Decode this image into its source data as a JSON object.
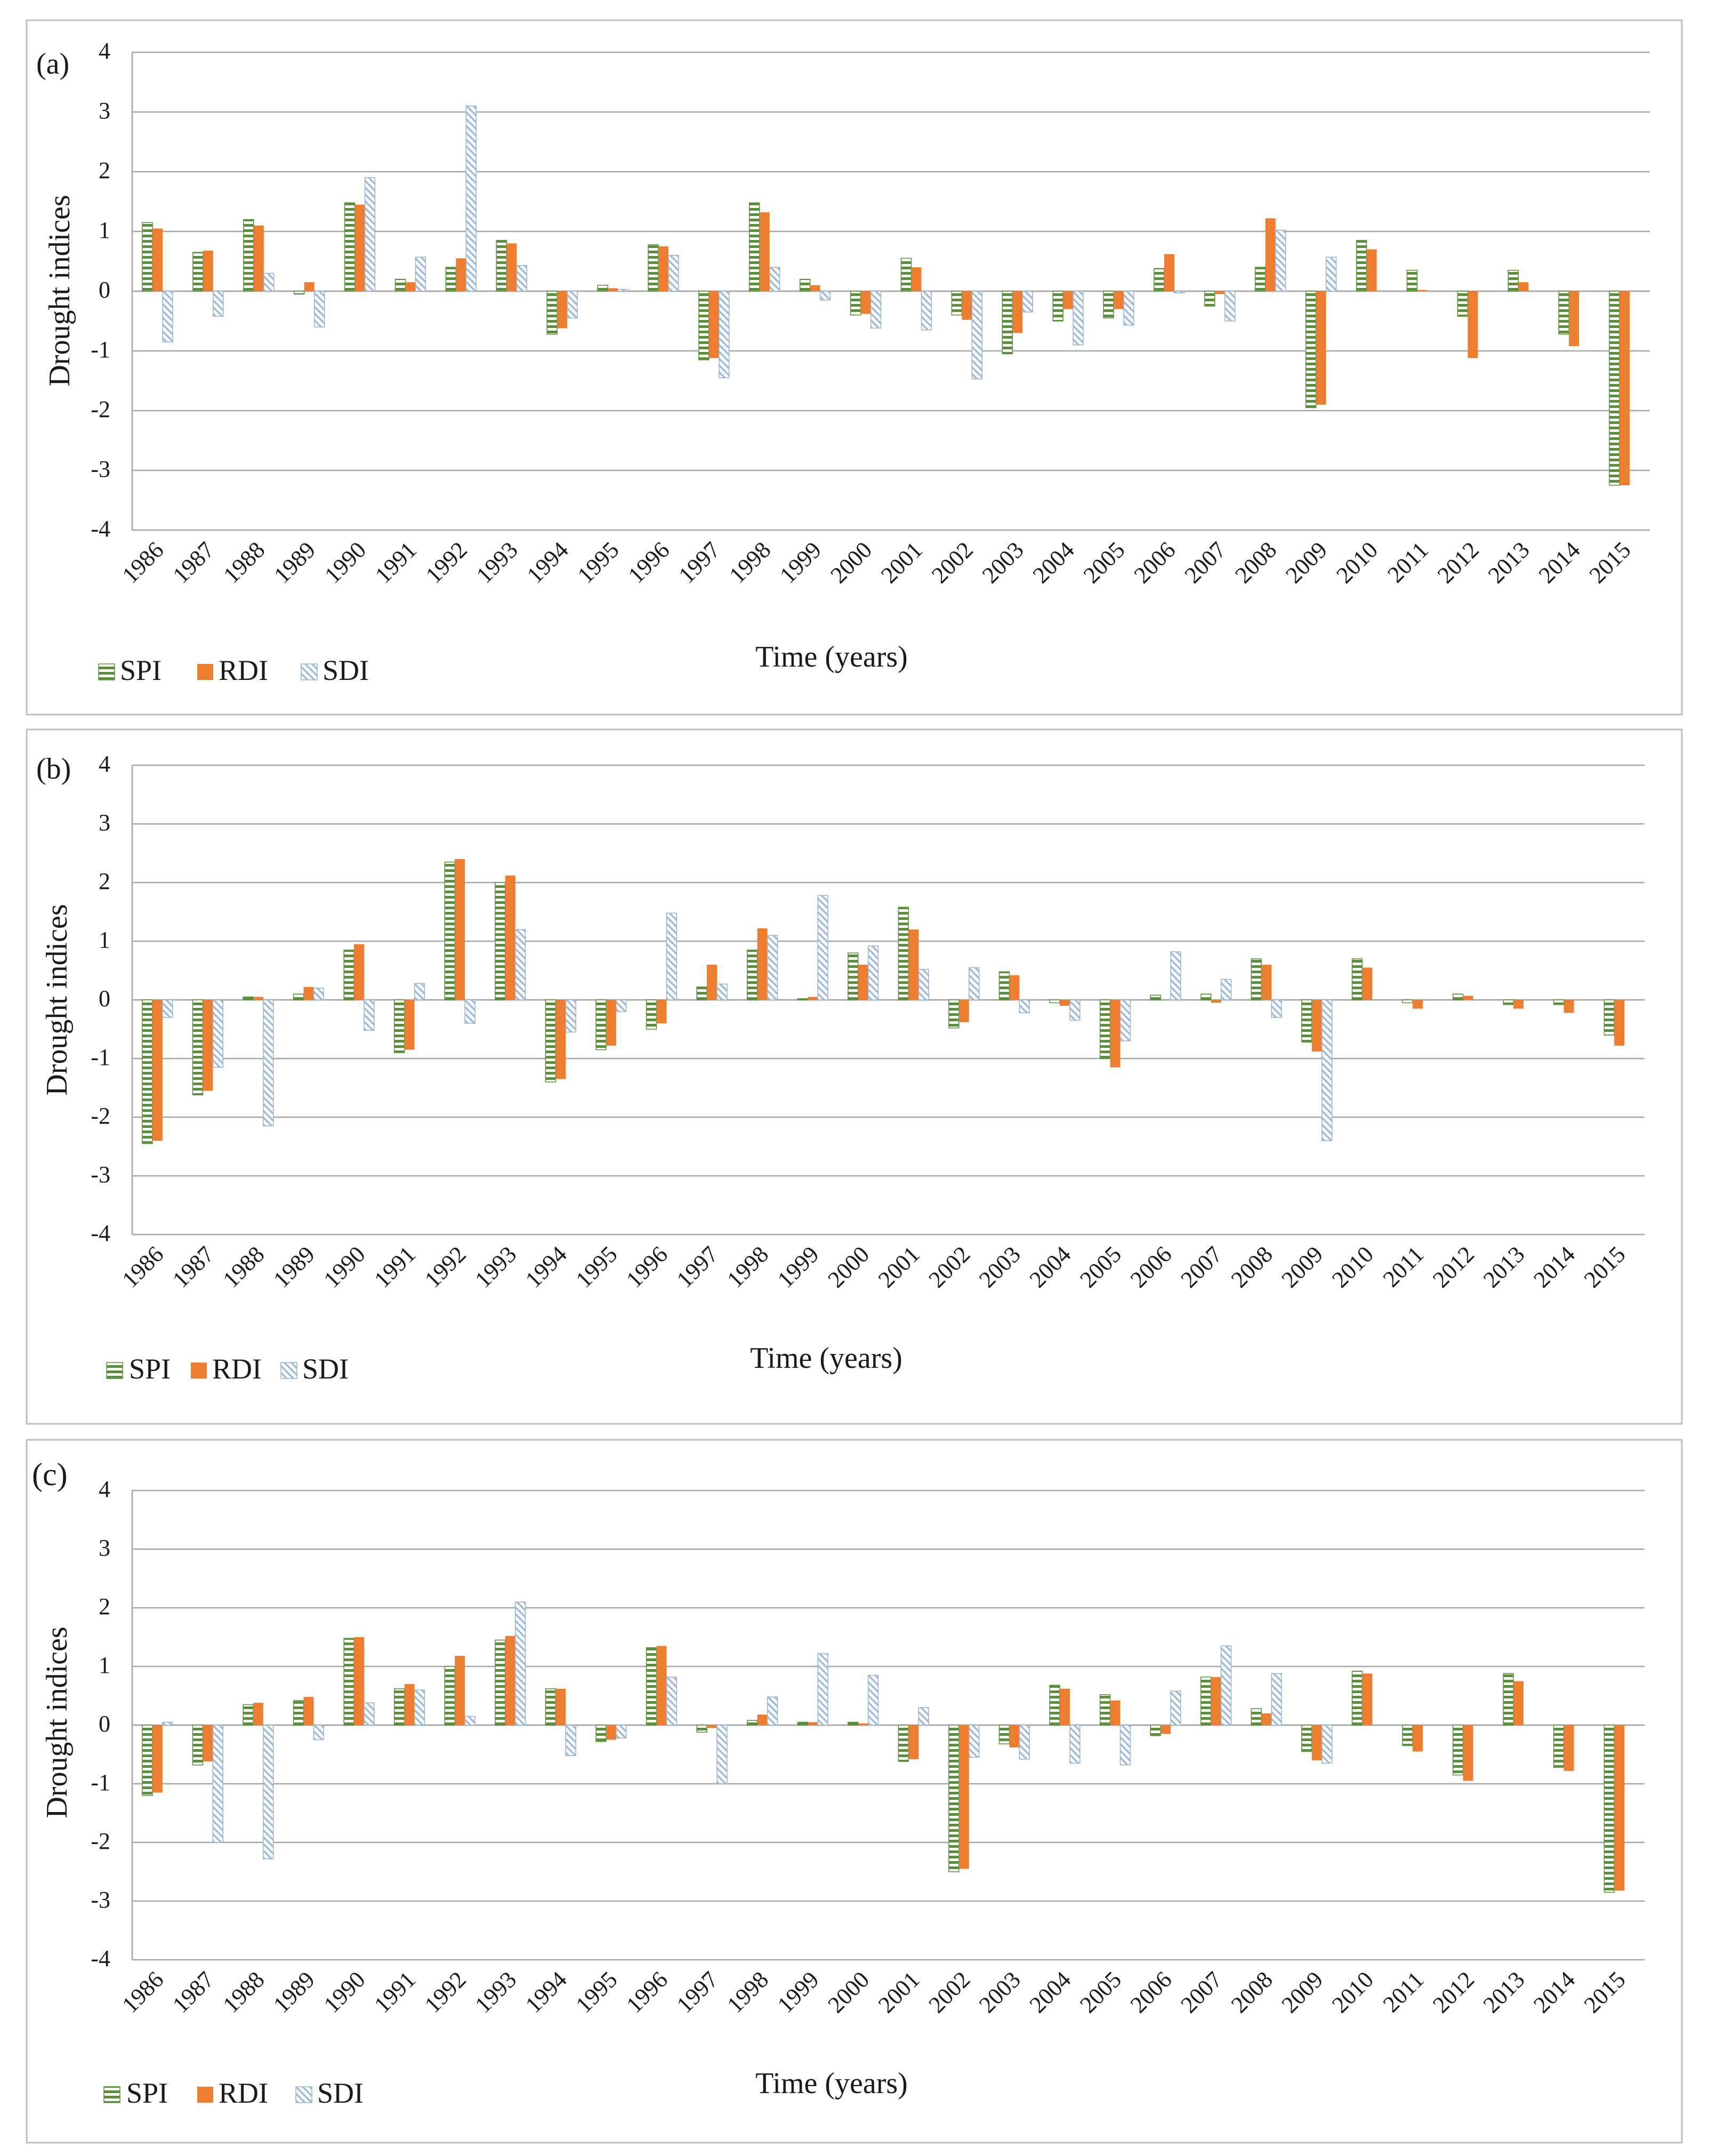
{
  "colors": {
    "spi_stripe": "#5a8f3c",
    "rdi_fill": "#ed7d31",
    "sdi_stripe": "#9bb5cf",
    "grid": "#a6a6a6",
    "panel_border": "#bfbfbf"
  },
  "chart_data": [
    {
      "type": "bar",
      "panel_label": "(a)",
      "ylabel": "Drought indices",
      "xlabel": "Time (years)",
      "ylim": [
        -4,
        4
      ],
      "yticks": [
        "4",
        "3",
        "2",
        "1",
        "0",
        "-1",
        "-2",
        "-3",
        "-4"
      ],
      "grid": true,
      "legend": [
        "SPI",
        "RDI",
        "SDI"
      ],
      "categories": [
        "1986",
        "1987",
        "1988",
        "1989",
        "1990",
        "1991",
        "1992",
        "1993",
        "1994",
        "1995",
        "1996",
        "1997",
        "1998",
        "1999",
        "2000",
        "2001",
        "2002",
        "2003",
        "2004",
        "2005",
        "2006",
        "2007",
        "2008",
        "2009",
        "2010",
        "2011",
        "2012",
        "2013",
        "2014",
        "2015"
      ],
      "series": [
        {
          "name": "SPI",
          "values": [
            1.15,
            0.65,
            1.2,
            -0.05,
            1.48,
            0.2,
            0.4,
            0.85,
            -0.72,
            0.1,
            0.78,
            -1.15,
            1.48,
            0.2,
            -0.4,
            0.55,
            -0.4,
            -1.05,
            -0.5,
            -0.45,
            0.38,
            -0.25,
            0.4,
            -1.95,
            0.85,
            0.35,
            -0.42,
            0.35,
            -0.72,
            -3.25
          ]
        },
        {
          "name": "RDI",
          "values": [
            1.05,
            0.68,
            1.1,
            0.15,
            1.45,
            0.15,
            0.55,
            0.8,
            -0.62,
            0.05,
            0.75,
            -1.12,
            1.32,
            0.1,
            -0.38,
            0.4,
            -0.48,
            -0.7,
            -0.3,
            -0.3,
            0.62,
            -0.05,
            1.22,
            -1.9,
            0.7,
            0.02,
            -1.12,
            0.15,
            -0.92,
            -3.25
          ]
        },
        {
          "name": "SDI",
          "values": [
            -0.85,
            -0.42,
            0.3,
            -0.6,
            1.9,
            0.57,
            3.1,
            0.43,
            -0.45,
            0.03,
            0.6,
            -1.45,
            0.4,
            -0.15,
            -0.62,
            -0.65,
            -1.47,
            -0.35,
            -0.9,
            -0.57,
            -0.03,
            -0.5,
            1.02,
            0.57,
            0.0,
            0.0,
            0.0,
            0.0,
            0.0,
            0.0
          ]
        }
      ]
    },
    {
      "type": "bar",
      "panel_label": "(b)",
      "ylabel": "Drought indices",
      "xlabel": "Time (years)",
      "ylim": [
        -4,
        4
      ],
      "yticks": [
        "4",
        "3",
        "2",
        "1",
        "0",
        "-1",
        "-2",
        "-3",
        "-4"
      ],
      "grid": true,
      "legend": [
        "SPI",
        "RDI",
        "SDI"
      ],
      "categories": [
        "1986",
        "1987",
        "1988",
        "1989",
        "1990",
        "1991",
        "1992",
        "1993",
        "1994",
        "1995",
        "1996",
        "1997",
        "1998",
        "1999",
        "2000",
        "2001",
        "2002",
        "2003",
        "2004",
        "2005",
        "2006",
        "2007",
        "2008",
        "2009",
        "2010",
        "2011",
        "2012",
        "2013",
        "2014",
        "2015"
      ],
      "series": [
        {
          "name": "SPI",
          "values": [
            -2.45,
            -1.62,
            0.05,
            0.1,
            0.85,
            -0.9,
            2.35,
            2.0,
            -1.4,
            -0.85,
            -0.5,
            0.22,
            0.85,
            0.02,
            0.8,
            1.58,
            -0.48,
            0.48,
            -0.05,
            -1.0,
            0.08,
            0.1,
            0.7,
            -0.72,
            0.7,
            -0.05,
            0.1,
            -0.08,
            -0.08,
            -0.6
          ]
        },
        {
          "name": "RDI",
          "values": [
            -2.4,
            -1.55,
            0.05,
            0.22,
            0.95,
            -0.85,
            2.4,
            2.12,
            -1.35,
            -0.78,
            -0.4,
            0.6,
            1.22,
            0.05,
            0.6,
            1.2,
            -0.38,
            0.42,
            -0.1,
            -1.15,
            0.0,
            -0.05,
            0.6,
            -0.88,
            0.55,
            -0.15,
            0.07,
            -0.15,
            -0.22,
            -0.78
          ]
        },
        {
          "name": "SDI",
          "values": [
            -0.3,
            -1.15,
            -2.15,
            0.2,
            -0.52,
            0.28,
            -0.4,
            1.2,
            -0.55,
            -0.2,
            1.48,
            0.27,
            1.1,
            1.78,
            0.92,
            0.52,
            0.55,
            -0.22,
            -0.35,
            -0.7,
            0.82,
            0.35,
            -0.3,
            -2.4,
            0.0,
            0.0,
            0.0,
            0.0,
            0.0,
            0.0
          ]
        }
      ]
    },
    {
      "type": "bar",
      "panel_label": "(c)",
      "ylabel": "Drought indices",
      "xlabel": "Time (years)",
      "ylim": [
        -4,
        4
      ],
      "yticks": [
        "4",
        "3",
        "2",
        "1",
        "0",
        "-1",
        "-2",
        "-3",
        "-4"
      ],
      "grid": true,
      "legend": [
        "SPI",
        "RDI",
        "SDI"
      ],
      "categories": [
        "1986",
        "1987",
        "1988",
        "1989",
        "1990",
        "1991",
        "1992",
        "1993",
        "1994",
        "1995",
        "1996",
        "1997",
        "1998",
        "1999",
        "2000",
        "2001",
        "2002",
        "2003",
        "2004",
        "2005",
        "2006",
        "2007",
        "2008",
        "2009",
        "2010",
        "2011",
        "2012",
        "2013",
        "2014",
        "2015"
      ],
      "series": [
        {
          "name": "SPI",
          "values": [
            -1.2,
            -0.68,
            0.35,
            0.42,
            1.48,
            0.62,
            1.0,
            1.45,
            0.62,
            -0.28,
            1.32,
            -0.12,
            0.08,
            0.05,
            0.05,
            -0.62,
            -2.5,
            -0.32,
            0.68,
            0.52,
            -0.18,
            0.82,
            0.28,
            -0.45,
            0.92,
            -0.35,
            -0.85,
            0.88,
            -0.72,
            -2.85
          ]
        },
        {
          "name": "RDI",
          "values": [
            -1.15,
            -0.62,
            0.38,
            0.48,
            1.5,
            0.7,
            1.18,
            1.52,
            0.62,
            -0.25,
            1.35,
            -0.05,
            0.18,
            0.05,
            0.03,
            -0.58,
            -2.45,
            -0.38,
            0.62,
            0.42,
            -0.15,
            0.82,
            0.2,
            -0.6,
            0.88,
            -0.45,
            -0.95,
            0.75,
            -0.78,
            -2.82
          ]
        },
        {
          "name": "SDI",
          "values": [
            0.05,
            -2.0,
            -2.28,
            -0.25,
            0.38,
            0.6,
            0.15,
            2.1,
            -0.52,
            -0.22,
            0.82,
            -1.0,
            0.48,
            1.22,
            0.85,
            0.3,
            -0.55,
            -0.58,
            -0.65,
            -0.68,
            0.58,
            1.35,
            0.88,
            -0.65,
            0.0,
            0.0,
            0.0,
            0.0,
            0.0,
            0.0
          ]
        }
      ]
    }
  ]
}
